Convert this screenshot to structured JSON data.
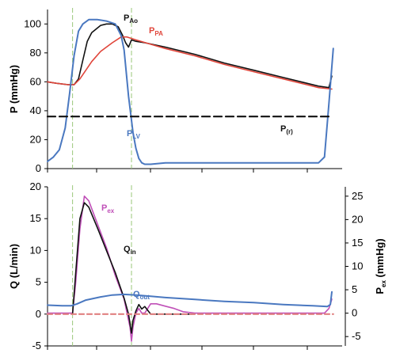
{
  "chart_data": [
    {
      "type": "line",
      "ylabel": "P (mmHg)",
      "ylim": [
        0,
        110
      ],
      "yticks": [
        0,
        20,
        40,
        60,
        80,
        100
      ],
      "xlim": [
        0,
        1
      ],
      "grid": false,
      "series": [
        {
          "name": "Ao",
          "label_main": "P",
          "label_sub": "Ao",
          "color": "#111111",
          "x": [
            0,
            0.03,
            0.07,
            0.09,
            0.105,
            0.12,
            0.135,
            0.15,
            0.18,
            0.2,
            0.22,
            0.24,
            0.255,
            0.265,
            0.275,
            0.285,
            0.3,
            0.33,
            0.4,
            0.5,
            0.6,
            0.7,
            0.8,
            0.88,
            0.92,
            0.955,
            0.965
          ],
          "y": [
            60,
            59,
            58,
            58,
            62,
            75,
            88,
            94,
            99,
            100,
            100,
            98,
            92,
            87,
            84,
            89,
            88,
            87,
            84,
            79,
            73,
            68,
            63,
            59,
            57,
            56,
            64
          ]
        },
        {
          "name": "PA",
          "label_main": "P",
          "label_sub": "PA",
          "color": "#e0453a",
          "x": [
            0,
            0.03,
            0.07,
            0.09,
            0.11,
            0.13,
            0.15,
            0.18,
            0.22,
            0.25,
            0.27,
            0.3,
            0.35,
            0.4,
            0.5,
            0.6,
            0.7,
            0.8,
            0.88,
            0.92,
            0.965
          ],
          "y": [
            60,
            59,
            58,
            58,
            62,
            68,
            74,
            81,
            87,
            91,
            91,
            89,
            86,
            83,
            78,
            72,
            67,
            62,
            58,
            56,
            55
          ]
        },
        {
          "name": "LV",
          "label_main": "P",
          "label_sub": "LV",
          "color": "#4a78c0",
          "x": [
            0,
            0.02,
            0.04,
            0.06,
            0.075,
            0.09,
            0.105,
            0.12,
            0.14,
            0.17,
            0.2,
            0.23,
            0.25,
            0.26,
            0.275,
            0.29,
            0.3,
            0.31,
            0.32,
            0.33,
            0.35,
            0.4,
            0.5,
            0.6,
            0.7,
            0.8,
            0.88,
            0.92,
            0.94,
            0.955,
            0.97
          ],
          "y": [
            5,
            8,
            13,
            28,
            52,
            78,
            95,
            100,
            103,
            103,
            102,
            100,
            92,
            82,
            50,
            25,
            14,
            7,
            4,
            3,
            3,
            4,
            4,
            4,
            4,
            4,
            4,
            4,
            8,
            45,
            83
          ]
        },
        {
          "name": "(r)",
          "label_main": "P",
          "label_sub": "(r)",
          "color": "#111111",
          "dashed": true,
          "x": [
            0,
            0.965
          ],
          "y": [
            36,
            36
          ]
        }
      ]
    },
    {
      "type": "line",
      "ylabel": "Q (L/min)",
      "ylim": [
        -5,
        20
      ],
      "yticks": [
        -5,
        0,
        5,
        10,
        15,
        20
      ],
      "y2label": "P (mmHg)",
      "y2label_main": "P",
      "y2label_sub": "ex",
      "y2label_rest": " (mmHg)",
      "y2lim": [
        -7,
        27
      ],
      "y2ticks": [
        -5,
        0,
        5,
        10,
        15,
        20,
        25
      ],
      "xlim": [
        0,
        1
      ],
      "grid": false,
      "series": [
        {
          "name": "ex",
          "label_main": "P",
          "label_sub": "ex",
          "color": "#c050b8",
          "axis": "right",
          "x": [
            0,
            0.03,
            0.06,
            0.085,
            0.095,
            0.11,
            0.125,
            0.14,
            0.17,
            0.2,
            0.23,
            0.26,
            0.27,
            0.28,
            0.285,
            0.29,
            0.3,
            0.31,
            0.32,
            0.33,
            0.34,
            0.35,
            0.37,
            0.4,
            0.43,
            0.46,
            0.5,
            0.6,
            0.7,
            0.8,
            0.88,
            0.94,
            0.955,
            0.965
          ],
          "y": [
            0,
            0,
            0,
            0,
            6,
            18,
            25,
            24,
            19,
            14,
            8,
            3,
            0,
            -3,
            -6,
            -3,
            0,
            1,
            0,
            0,
            1,
            2,
            2,
            1.5,
            1,
            0.3,
            0,
            0,
            0,
            0,
            0,
            0,
            1,
            3
          ]
        },
        {
          "name": "in",
          "label_main": "Q",
          "label_sub": "in",
          "color": "#111111",
          "x": [
            0.085,
            0.095,
            0.11,
            0.125,
            0.14,
            0.17,
            0.2,
            0.23,
            0.26,
            0.275,
            0.285,
            0.29,
            0.3,
            0.31,
            0.32,
            0.33,
            0.35,
            0.4,
            0.45,
            0.5
          ],
          "y": [
            0,
            6,
            15,
            17.5,
            16.8,
            13.5,
            10,
            6.5,
            2.5,
            0,
            -3,
            -1,
            0.5,
            1.5,
            0.8,
            1.2,
            0,
            0,
            0,
            0
          ]
        },
        {
          "name": "out",
          "label_main": "Q",
          "label_sub": "out",
          "color": "#4a78c0",
          "x": [
            0,
            0.05,
            0.08,
            0.1,
            0.13,
            0.18,
            0.22,
            0.26,
            0.3,
            0.35,
            0.4,
            0.5,
            0.6,
            0.7,
            0.8,
            0.9,
            0.95,
            0.96,
            0.965
          ],
          "y": [
            1.4,
            1.3,
            1.3,
            1.6,
            2.2,
            2.7,
            3.0,
            3.1,
            3.0,
            2.8,
            2.6,
            2.3,
            2.0,
            1.8,
            1.5,
            1.3,
            1.2,
            1.5,
            3.5
          ]
        },
        {
          "name": "zero",
          "label_main": "",
          "label_sub": "",
          "color": "#e08080",
          "dashed": true,
          "x": [
            0,
            0.97
          ],
          "y": [
            0,
            0
          ]
        }
      ]
    }
  ],
  "markers": {
    "color": "#9ac87a",
    "x": [
      0.085,
      0.285
    ]
  }
}
